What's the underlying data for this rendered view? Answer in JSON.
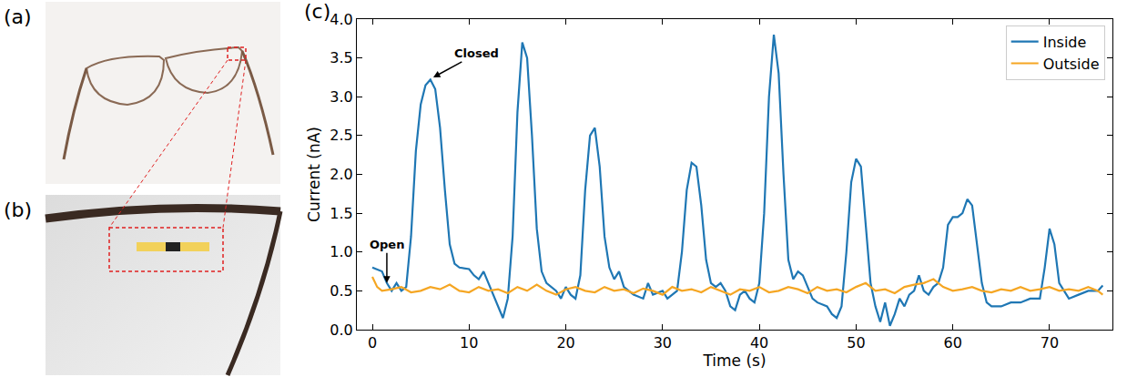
{
  "panel_labels": [
    "(a)",
    "(b)",
    "(c)"
  ],
  "chart_data": {
    "type": "line",
    "x_label": "Time (s)",
    "y_label": "Current (nA)",
    "xlim": [
      -1.6,
      76.5
    ],
    "xticks": [
      0,
      10,
      20,
      30,
      40,
      50,
      60,
      70
    ],
    "ylim": [
      0,
      4
    ],
    "yticks": [
      {
        "value": 0,
        "label": "0.0"
      },
      {
        "value": 0.5,
        "label": "0.5"
      },
      {
        "value": 1,
        "label": "1.0"
      },
      {
        "value": 1.5,
        "label": "1.5"
      },
      {
        "value": 2,
        "label": "2.0"
      },
      {
        "value": 2.5,
        "label": "2.5"
      },
      {
        "value": 3,
        "label": "3.0"
      },
      {
        "value": 3.5,
        "label": "3.5"
      },
      {
        "value": 4,
        "label": "4.0"
      }
    ],
    "grid": false,
    "legend": "upper right",
    "annotations": [
      {
        "text": "Open",
        "x": 1.5,
        "y": 0.6
      },
      {
        "text": "Closed",
        "x": 6.3,
        "y": 3.25
      }
    ],
    "series": [
      {
        "name": "Inside",
        "color": "#1f77b4",
        "x": [
          0,
          1,
          1.5,
          2,
          2.5,
          3,
          3.5,
          4,
          4.5,
          5,
          5.5,
          6,
          6.5,
          7,
          7.5,
          8,
          8.5,
          9,
          10,
          10.5,
          11,
          11.5,
          12,
          12.5,
          13,
          13.5,
          14,
          14.5,
          15,
          15.5,
          16,
          16.5,
          17,
          17.5,
          18,
          19,
          19.5,
          20,
          20.5,
          21,
          21.5,
          22,
          22.5,
          23,
          23.5,
          24,
          24.5,
          25,
          25.5,
          26,
          26.5,
          27,
          28,
          28.5,
          29,
          30,
          30.5,
          31,
          31.5,
          32,
          32.5,
          33,
          33.5,
          34,
          34.5,
          35,
          35.5,
          36,
          36.5,
          37,
          37.5,
          38,
          38.5,
          39,
          39.5,
          40,
          40.5,
          41,
          41.5,
          42,
          42.5,
          43,
          43.5,
          44,
          44.5,
          45,
          45.5,
          46,
          47,
          47.5,
          48,
          48.5,
          49,
          49.5,
          50,
          50.5,
          51,
          51.5,
          52,
          52.5,
          53,
          53.5,
          54,
          54.5,
          55,
          55.5,
          56,
          56.5,
          57,
          57.5,
          58,
          58.5,
          59,
          59.5,
          60,
          60.5,
          61,
          61.5,
          62,
          62.5,
          63,
          63.5,
          64,
          65,
          66,
          67,
          68,
          69,
          69.5,
          70,
          70.5,
          71,
          72,
          73,
          74,
          75,
          75.5
        ],
        "values": [
          0.8,
          0.75,
          0.6,
          0.5,
          0.6,
          0.5,
          0.55,
          1.2,
          2.3,
          2.9,
          3.15,
          3.22,
          3.1,
          2.6,
          1.8,
          1.1,
          0.85,
          0.8,
          0.78,
          0.7,
          0.65,
          0.75,
          0.6,
          0.45,
          0.3,
          0.15,
          0.4,
          1.2,
          2.8,
          3.7,
          3.5,
          2.5,
          1.3,
          0.75,
          0.6,
          0.5,
          0.4,
          0.55,
          0.45,
          0.4,
          0.7,
          1.8,
          2.5,
          2.6,
          2.1,
          1.2,
          0.8,
          0.65,
          0.75,
          0.55,
          0.5,
          0.45,
          0.4,
          0.6,
          0.45,
          0.5,
          0.4,
          0.45,
          0.5,
          1.0,
          1.8,
          2.15,
          2.1,
          1.6,
          0.9,
          0.6,
          0.55,
          0.6,
          0.5,
          0.3,
          0.25,
          0.45,
          0.5,
          0.4,
          0.35,
          0.6,
          1.5,
          3.0,
          3.8,
          3.3,
          2.0,
          0.9,
          0.65,
          0.75,
          0.7,
          0.55,
          0.4,
          0.35,
          0.3,
          0.2,
          0.15,
          0.3,
          1.0,
          1.9,
          2.2,
          2.1,
          1.3,
          0.6,
          0.3,
          0.1,
          0.35,
          0.05,
          0.2,
          0.4,
          0.3,
          0.45,
          0.5,
          0.7,
          0.5,
          0.45,
          0.55,
          0.6,
          0.8,
          1.35,
          1.45,
          1.45,
          1.5,
          1.68,
          1.6,
          1.1,
          0.6,
          0.35,
          0.3,
          0.3,
          0.35,
          0.35,
          0.4,
          0.4,
          0.8,
          1.3,
          1.1,
          0.6,
          0.4,
          0.45,
          0.5,
          0.5,
          0.57
        ]
      },
      {
        "name": "Outside",
        "color": "#f5a623",
        "x": [
          0,
          0.5,
          1,
          2,
          3,
          4,
          5,
          6,
          7,
          8,
          9,
          10,
          11,
          12,
          13,
          14,
          15,
          16,
          17,
          18,
          19,
          20,
          21,
          22,
          23,
          24,
          25,
          26,
          27,
          28,
          29,
          30,
          31,
          32,
          33,
          34,
          35,
          36,
          37,
          38,
          39,
          40,
          41,
          42,
          43,
          44,
          45,
          46,
          47,
          48,
          49,
          50,
          51,
          52,
          53,
          54,
          55,
          56,
          57,
          58,
          59,
          60,
          61,
          62,
          63,
          64,
          65,
          66,
          67,
          68,
          69,
          70,
          71,
          72,
          73,
          74,
          75,
          75.5
        ],
        "values": [
          0.68,
          0.55,
          0.5,
          0.52,
          0.55,
          0.48,
          0.5,
          0.55,
          0.52,
          0.58,
          0.5,
          0.48,
          0.55,
          0.5,
          0.52,
          0.47,
          0.55,
          0.5,
          0.58,
          0.5,
          0.45,
          0.52,
          0.55,
          0.5,
          0.48,
          0.55,
          0.5,
          0.52,
          0.47,
          0.53,
          0.5,
          0.45,
          0.55,
          0.5,
          0.52,
          0.48,
          0.55,
          0.5,
          0.45,
          0.52,
          0.5,
          0.55,
          0.48,
          0.5,
          0.55,
          0.52,
          0.47,
          0.55,
          0.5,
          0.52,
          0.48,
          0.55,
          0.6,
          0.5,
          0.52,
          0.47,
          0.55,
          0.58,
          0.6,
          0.65,
          0.55,
          0.5,
          0.52,
          0.55,
          0.5,
          0.48,
          0.52,
          0.5,
          0.55,
          0.5,
          0.52,
          0.55,
          0.5,
          0.52,
          0.5,
          0.55,
          0.5,
          0.45
        ]
      }
    ]
  }
}
